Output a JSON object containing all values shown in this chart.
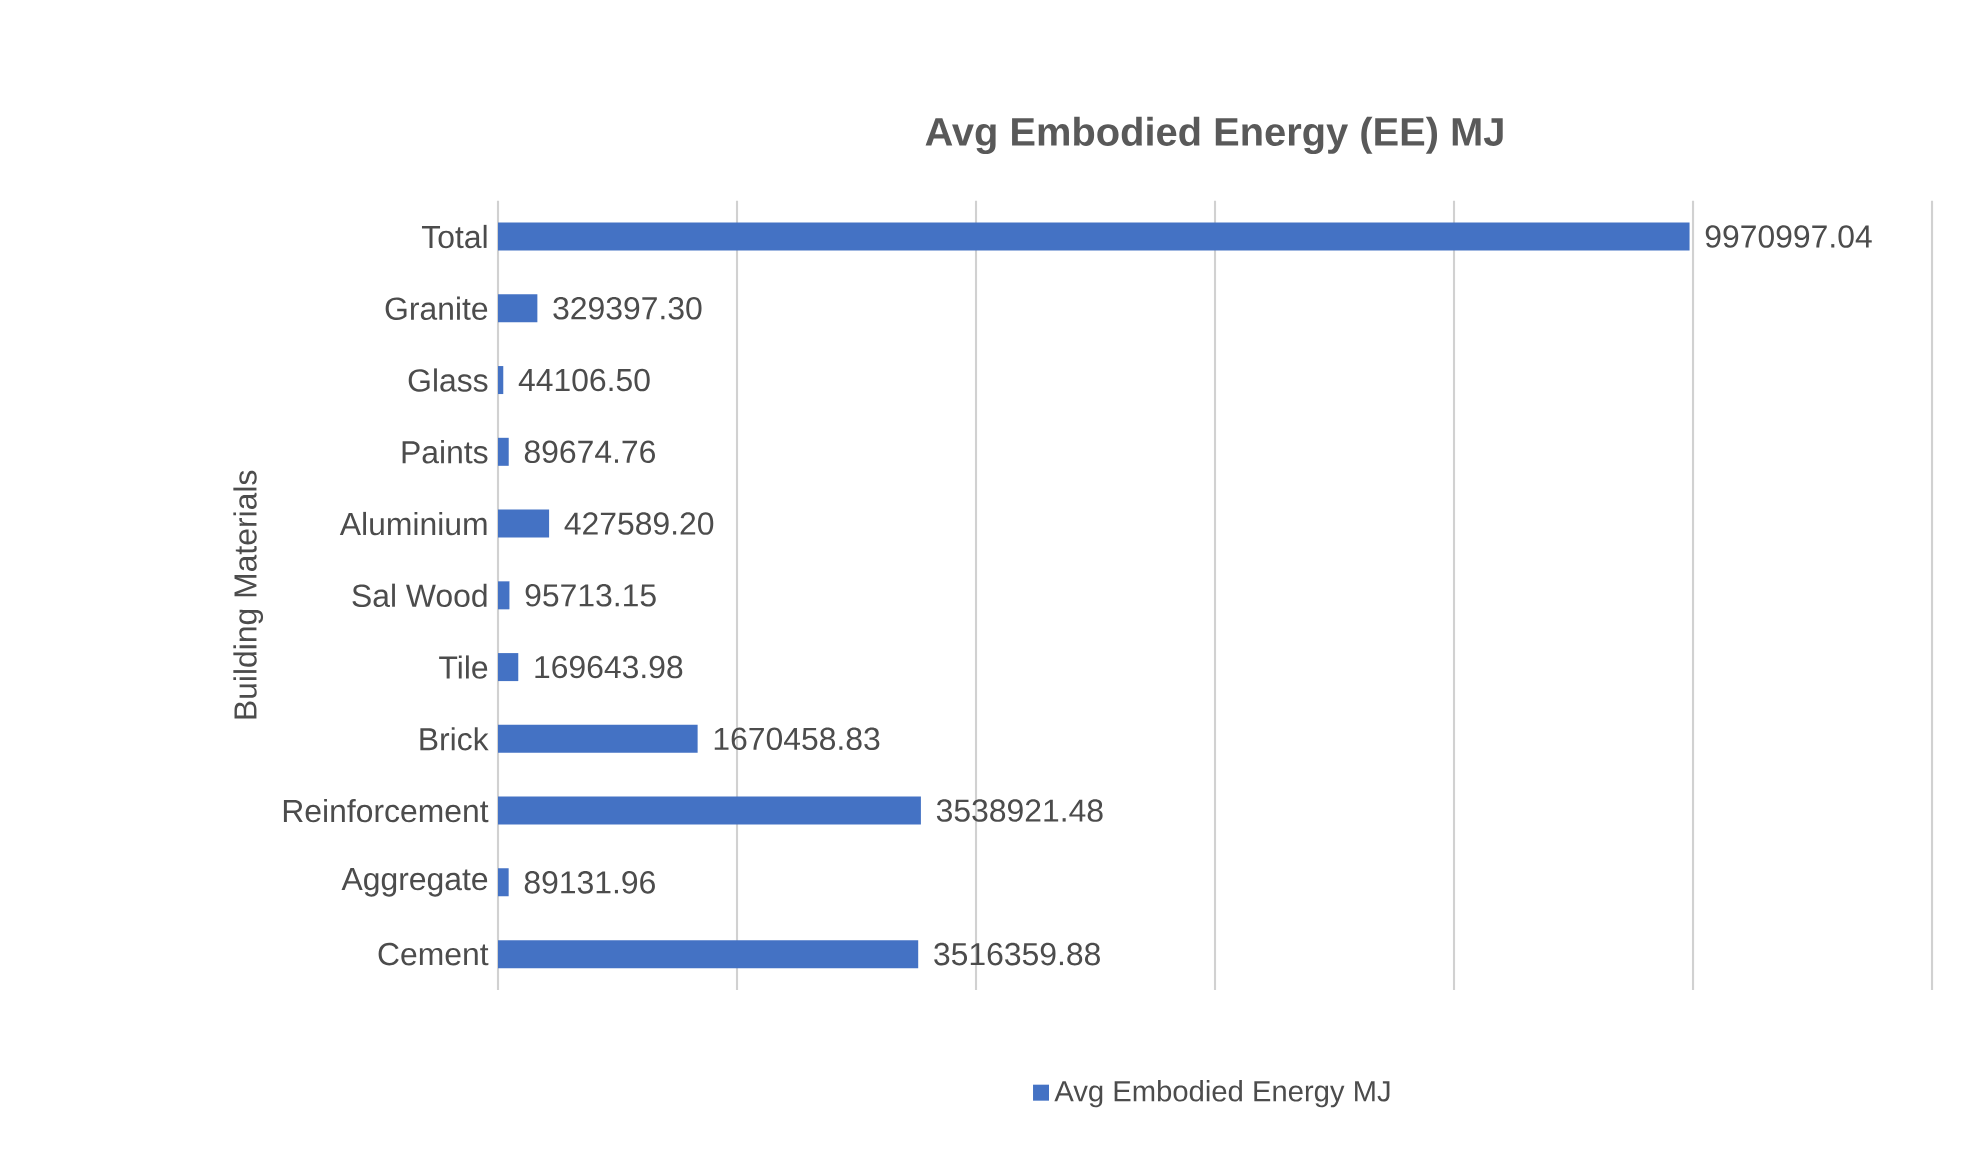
{
  "chart_data": {
    "type": "bar",
    "orientation": "horizontal",
    "title": "Avg Embodied Energy (EE) MJ",
    "ylabel": "Building Materials",
    "categories": [
      "Total",
      "Granite",
      "Glass",
      "Paints",
      "Aluminium",
      "Sal Wood",
      "Tile",
      "Brick",
      "Reinforcement",
      "Aggregate",
      "Cement"
    ],
    "series": [
      {
        "name": "Avg Embodied Energy MJ",
        "color": "#4472c4",
        "values": [
          9970997.04,
          329397.3,
          44106.5,
          89674.76,
          427589.2,
          95713.15,
          169643.98,
          1670458.83,
          3538921.48,
          89131.96,
          3516359.88
        ],
        "value_labels": [
          "9970997.04",
          "329397.30",
          "44106.50",
          "89674.76",
          "427589.20",
          "95713.15",
          "169643.98",
          "1670458.83",
          "3538921.48",
          "89131.96",
          "3516359.88"
        ]
      }
    ],
    "xlim": [
      0,
      12000000
    ],
    "xticks": [
      0,
      2000000,
      4000000,
      6000000,
      8000000,
      10000000,
      12000000
    ],
    "tick_labels": "y",
    "grid": "x",
    "legend": "bottom"
  }
}
